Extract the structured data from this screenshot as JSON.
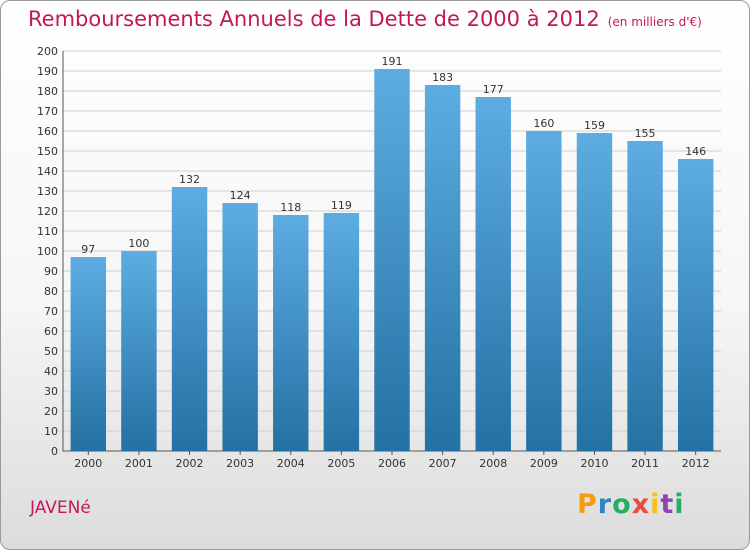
{
  "title": "Remboursements Annuels de la Dette de 2000 à 2012",
  "unit": "(en milliers d'€)",
  "commune": "JAVENé",
  "logo": {
    "letters": [
      "P",
      "r",
      "o",
      "x",
      "i",
      "t",
      "i"
    ],
    "colors": [
      "#f39c12",
      "#2e86c1",
      "#27ae60",
      "#e74c3c",
      "#f1c40f",
      "#8e44ad",
      "#27ae60"
    ]
  },
  "chart_data": {
    "type": "bar",
    "title": "Remboursements Annuels de la Dette de 2000 à 2012",
    "categories": [
      "2000",
      "2001",
      "2002",
      "2003",
      "2004",
      "2005",
      "2006",
      "2007",
      "2008",
      "2009",
      "2010",
      "2011",
      "2012"
    ],
    "values": [
      97,
      100,
      132,
      124,
      118,
      119,
      191,
      183,
      177,
      160,
      159,
      155,
      146
    ],
    "ylim": [
      0,
      200
    ],
    "yticks": [
      0,
      10,
      20,
      30,
      40,
      50,
      60,
      70,
      80,
      90,
      100,
      110,
      120,
      130,
      140,
      150,
      160,
      170,
      180,
      190,
      200
    ],
    "grid": true,
    "bar_color_top": "#5dade2",
    "bar_color_bottom": "#2471a3"
  }
}
